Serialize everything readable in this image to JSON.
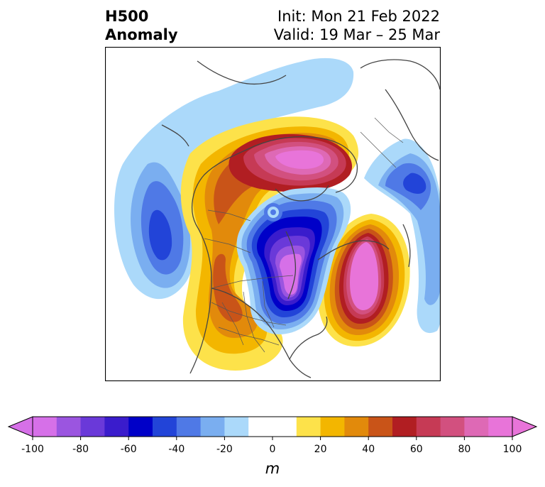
{
  "header": {
    "title_line1": "H500",
    "title_line2": "Anomaly",
    "init_text": "Init: Mon 21 Feb 2022",
    "valid_text": "Valid: 19 Mar – 25 Mar"
  },
  "colorbar": {
    "ticks": [
      "-100",
      "-80",
      "-60",
      "-40",
      "-20",
      "0",
      "20",
      "40",
      "60",
      "80",
      "100"
    ],
    "unit": "m",
    "colors": [
      "#d670e8",
      "#9b55e0",
      "#6a39d9",
      "#3a1ccc",
      "#0000c8",
      "#2244d8",
      "#4f79e6",
      "#7aaef0",
      "#abd9fa",
      "#ffffff",
      "#ffffff",
      "#fde24a",
      "#f3b600",
      "#e28a0b",
      "#c95418",
      "#b11e22",
      "#c63a55",
      "#d2507f",
      "#de69b5",
      "#e874d9"
    ]
  }
}
